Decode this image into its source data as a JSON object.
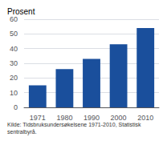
{
  "chart_data": {
    "type": "bar",
    "ylabel": "Prosent",
    "footnote": "Kilde: Tidsbruksundersøkelsene 1971-2010, Statistisk sentralbyrå.",
    "categories": [
      "1971",
      "1980",
      "1990",
      "2000",
      "2010"
    ],
    "values": [
      15,
      26,
      33,
      43,
      54
    ],
    "color": "#1a4f9c",
    "ylim": [
      0,
      60
    ],
    "yticks": [
      0,
      10,
      20,
      30,
      40,
      50,
      60
    ],
    "grid": true
  }
}
